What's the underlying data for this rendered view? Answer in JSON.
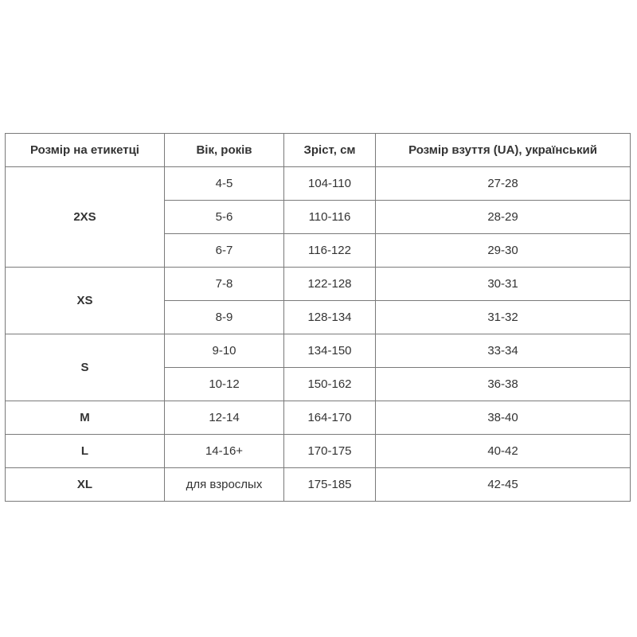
{
  "headers": [
    "Розмір на етикетці",
    "Вік, років",
    "Зріст, см",
    "Розмір взуття (UA), український"
  ],
  "groups": [
    {
      "size": "2XS",
      "rows": [
        [
          "4-5",
          "104-110",
          "27-28"
        ],
        [
          "5-6",
          "110-116",
          "28-29"
        ],
        [
          "6-7",
          "116-122",
          "29-30"
        ]
      ]
    },
    {
      "size": "XS",
      "rows": [
        [
          "7-8",
          "122-128",
          "30-31"
        ],
        [
          "8-9",
          "128-134",
          "31-32"
        ]
      ]
    },
    {
      "size": "S",
      "rows": [
        [
          "9-10",
          "134-150",
          "33-34"
        ],
        [
          "10-12",
          "150-162",
          "36-38"
        ]
      ]
    },
    {
      "size": "M",
      "rows": [
        [
          "12-14",
          "164-170",
          "38-40"
        ]
      ]
    },
    {
      "size": "L",
      "rows": [
        [
          "14-16+",
          "170-175",
          "40-42"
        ]
      ]
    },
    {
      "size": "XL",
      "rows": [
        [
          "для взрослых",
          "175-185",
          "42-45"
        ]
      ]
    }
  ]
}
